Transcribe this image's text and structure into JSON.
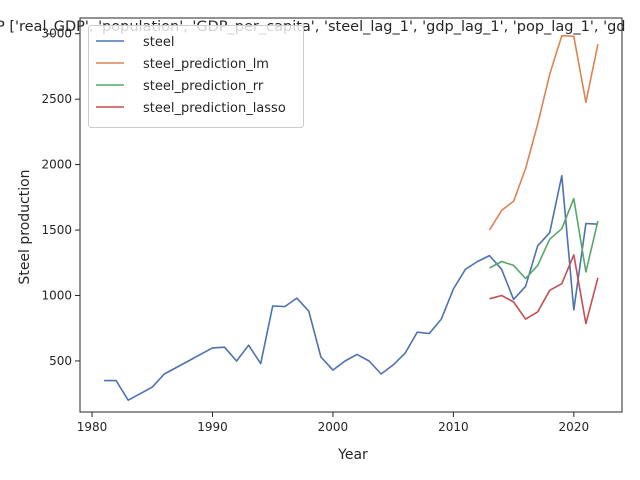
{
  "chart_data": {
    "type": "line",
    "title": "P ['real_GDP', 'population', 'GDP_per_capita', 'steel_lag_1', 'gdp_lag_1', 'pop_lag_1', 'gd",
    "xlabel": "Year",
    "ylabel": "Steel production",
    "xlim": [
      1979,
      2024
    ],
    "ylim": [
      110,
      3120
    ],
    "xticks": [
      1980,
      1990,
      2000,
      2010,
      2020
    ],
    "yticks": [
      500,
      1000,
      1500,
      2000,
      2500,
      3000
    ],
    "grid": false,
    "legend_position": "top-left",
    "series": [
      {
        "name": "steel",
        "color": "#4c72b0",
        "x": [
          1981,
          1982,
          1983,
          1984,
          1985,
          1986,
          1987,
          1988,
          1989,
          1990,
          1991,
          1992,
          1993,
          1994,
          1995,
          1996,
          1997,
          1998,
          1999,
          2000,
          2001,
          2002,
          2003,
          2004,
          2005,
          2006,
          2007,
          2008,
          2009,
          2010,
          2011,
          2012,
          2013,
          2014,
          2015,
          2016,
          2017,
          2018,
          2019,
          2020,
          2021,
          2022
        ],
        "values": [
          350,
          350,
          200,
          250,
          300,
          400,
          450,
          500,
          550,
          600,
          605,
          500,
          620,
          480,
          920,
          915,
          980,
          880,
          530,
          430,
          500,
          550,
          500,
          400,
          470,
          560,
          720,
          710,
          820,
          1050,
          1200,
          1260,
          1305,
          1200,
          970,
          1070,
          1380,
          1480,
          1915,
          890,
          1550,
          1545
        ]
      },
      {
        "name": "steel_prediction_lm",
        "color": "#dd8452",
        "x": [
          2013,
          2014,
          2015,
          2016,
          2017,
          2018,
          2019,
          2020,
          2021,
          2022
        ],
        "values": [
          1500,
          1650,
          1720,
          1970,
          2310,
          2690,
          2985,
          2980,
          2475,
          2920
        ]
      },
      {
        "name": "steel_prediction_rr",
        "color": "#55a868",
        "x": [
          2013,
          2014,
          2015,
          2016,
          2017,
          2018,
          2019,
          2020,
          2021,
          2022
        ],
        "values": [
          1210,
          1260,
          1230,
          1130,
          1230,
          1430,
          1510,
          1740,
          1180,
          1570
        ]
      },
      {
        "name": "steel_prediction_lasso",
        "color": "#c44e52",
        "x": [
          2013,
          2014,
          2015,
          2016,
          2017,
          2018,
          2019,
          2020,
          2021,
          2022
        ],
        "values": [
          975,
          1000,
          950,
          820,
          875,
          1040,
          1090,
          1310,
          785,
          1135
        ]
      }
    ]
  }
}
